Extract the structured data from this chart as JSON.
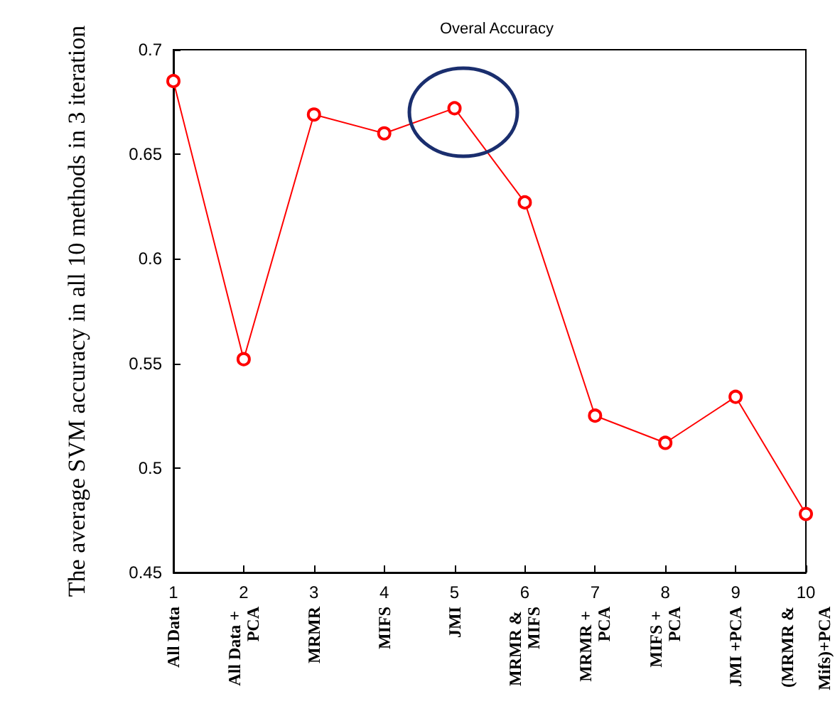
{
  "chart_data": {
    "type": "line",
    "title": "Overal Accuracy",
    "ylabel": "The average SVM accuracy in all 10 methods in 3 iteration",
    "x": [
      1,
      2,
      3,
      4,
      5,
      6,
      7,
      8,
      9,
      10
    ],
    "series": [
      {
        "color": "#ff0000",
        "values": [
          0.685,
          0.552,
          0.669,
          0.66,
          0.672,
          0.627,
          0.525,
          0.512,
          0.534,
          0.478
        ]
      }
    ],
    "xlim": [
      1,
      10
    ],
    "xticks": [
      1,
      2,
      3,
      4,
      5,
      6,
      7,
      8,
      9,
      10
    ],
    "ylim": [
      0.45,
      0.7
    ],
    "yticks": [
      0.45,
      0.5,
      0.55,
      0.6,
      0.65,
      0.7
    ],
    "annotations": [
      "All Data",
      "All Data + PCA",
      "MRMR",
      "MIFS",
      "JMI",
      "MRMR & MIFS",
      "MRMR + PCA",
      "MIFS + PCA",
      "JMI +PCA",
      "(MRMR & Mifs)+PCA"
    ],
    "grid": false,
    "marker": "circle",
    "line_style": "solid"
  }
}
